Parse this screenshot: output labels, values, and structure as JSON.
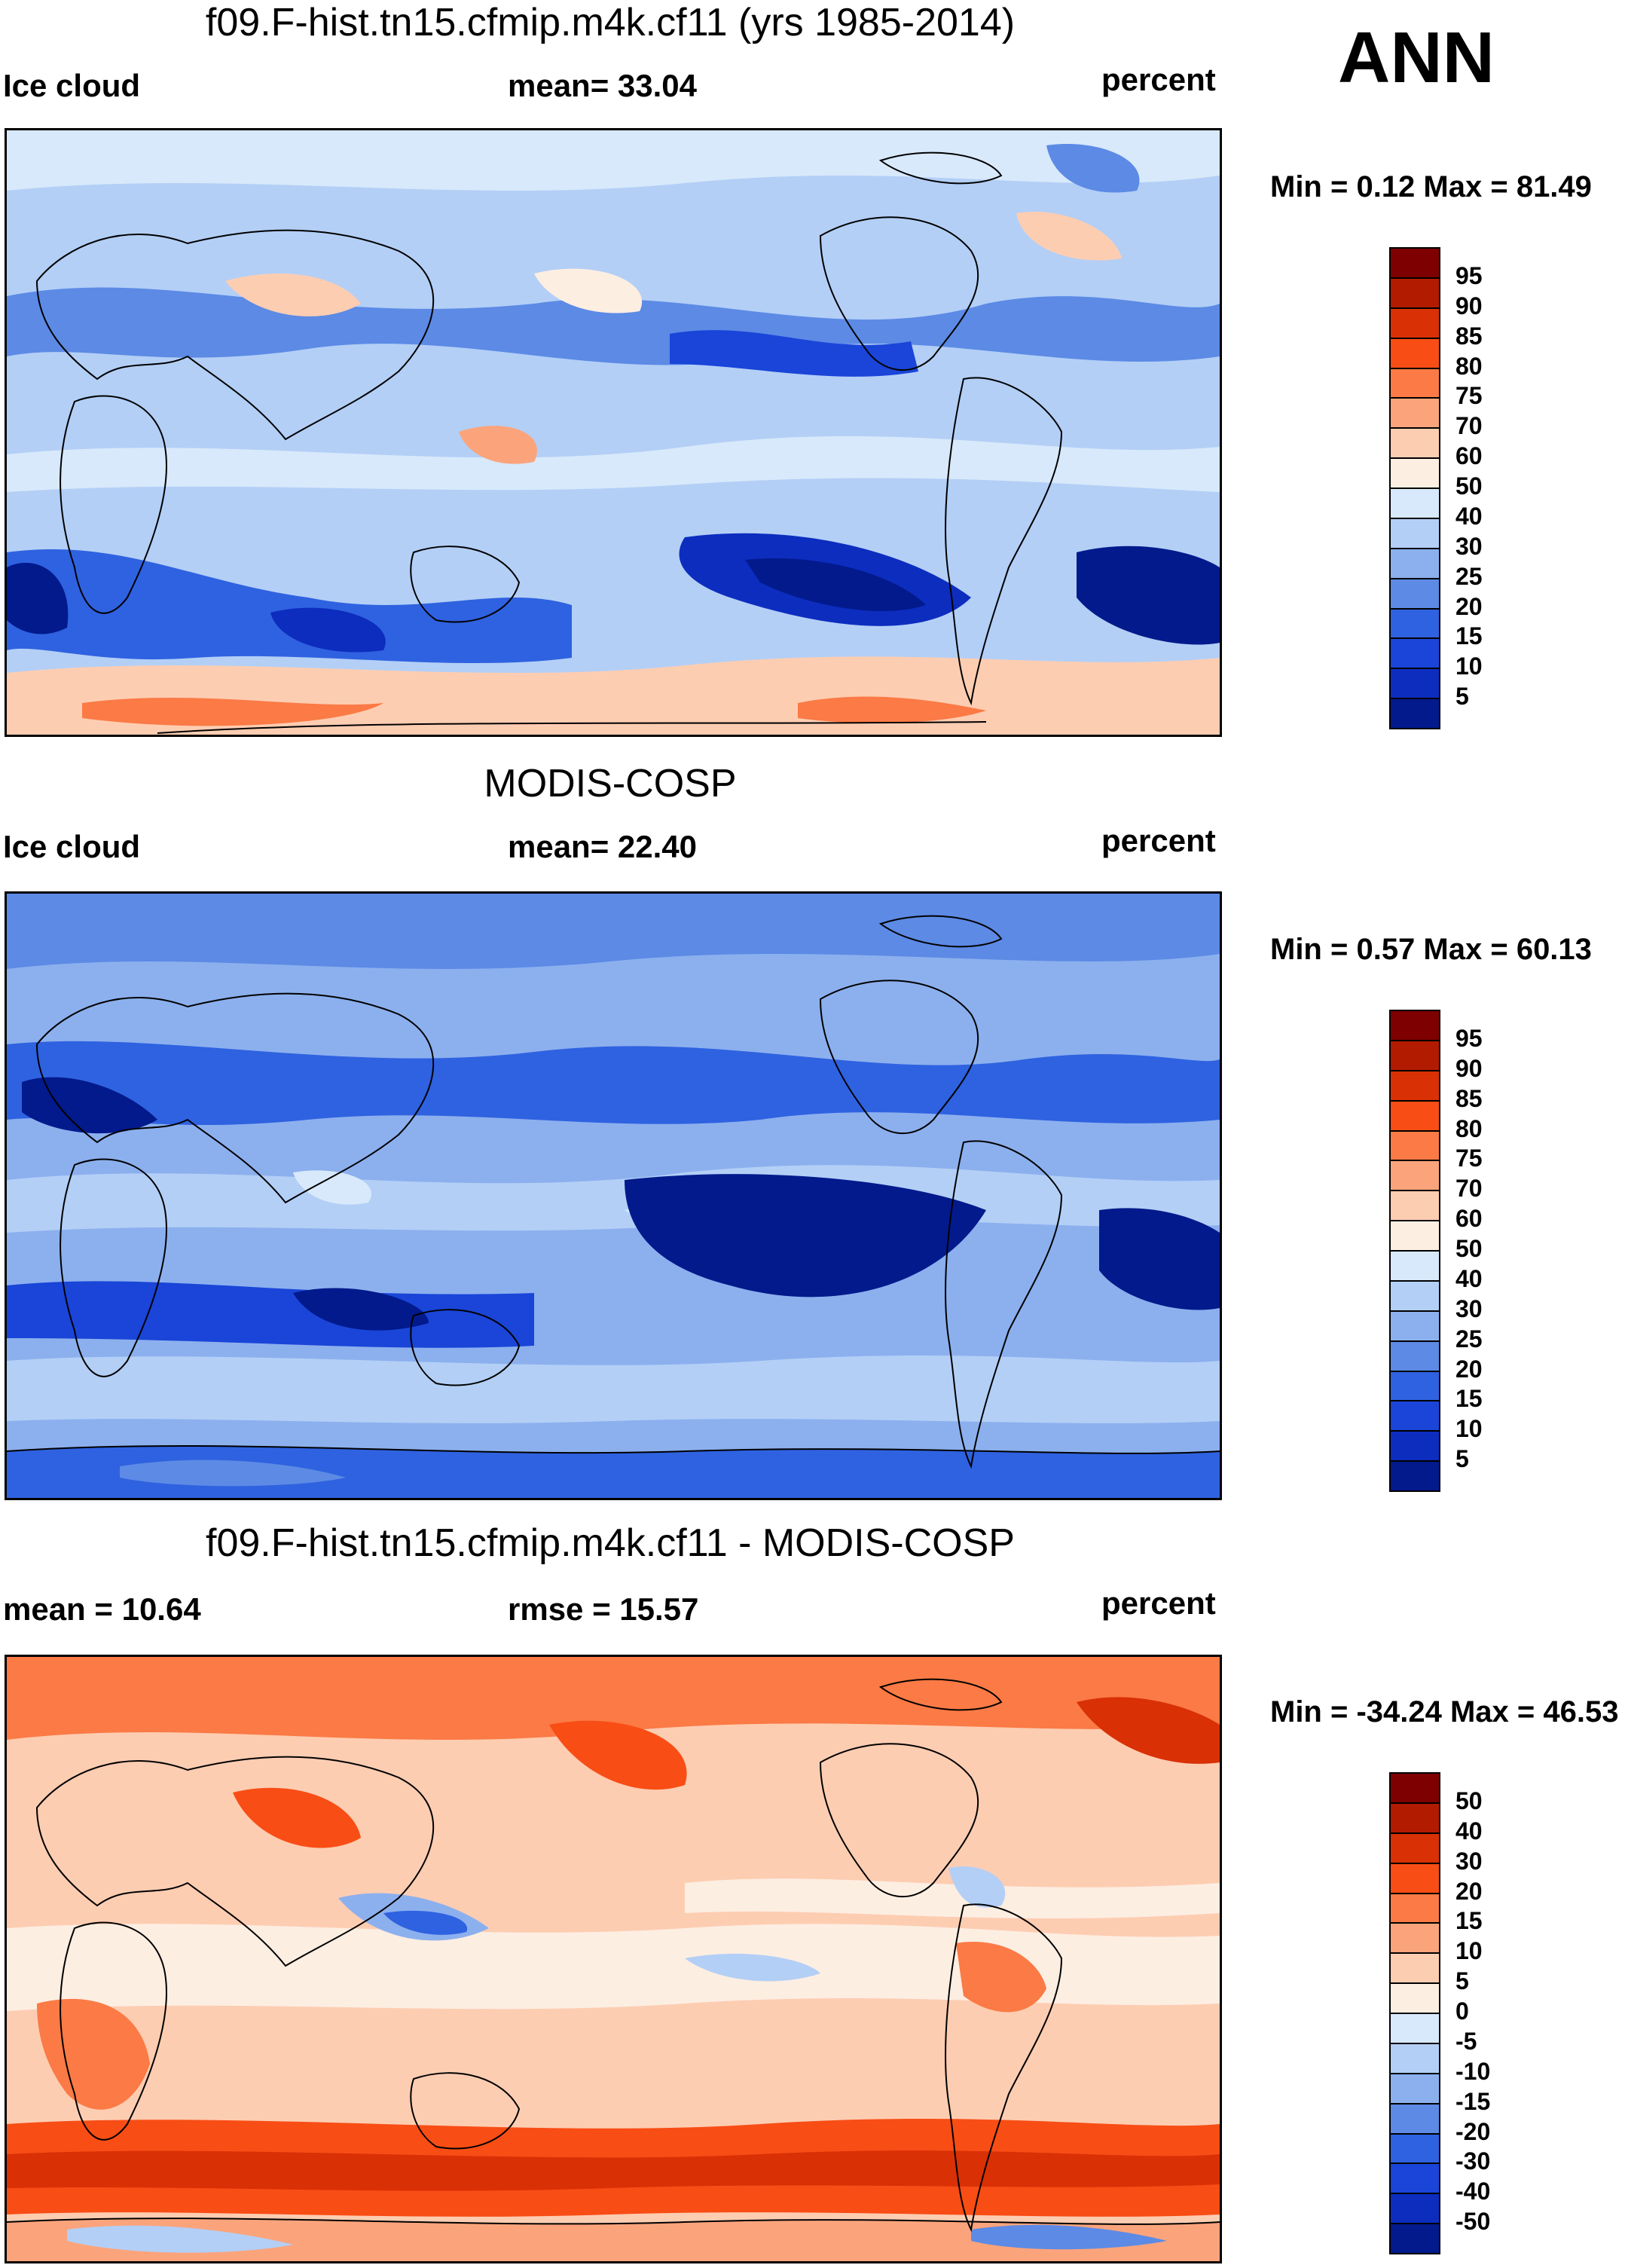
{
  "season": "ANN",
  "chart_data": [
    {
      "type": "heatmap",
      "title": "f09.F-hist.tn15.cfmip.m4k.cf11 (yrs 1985-2014)",
      "left_label": "Ice cloud",
      "center_label": "mean=  33.04",
      "units": "percent",
      "stats": "Min =   0.12 Max =  81.49",
      "mean": 33.04,
      "min": 0.12,
      "max": 81.49,
      "colorbar_ticks": [
        "95",
        "90",
        "85",
        "80",
        "75",
        "70",
        "60",
        "50",
        "40",
        "30",
        "25",
        "20",
        "15",
        "10",
        "5"
      ],
      "colors": [
        "#7f0000",
        "#b31b00",
        "#d93006",
        "#f84d15",
        "#fb7a45",
        "#fba47c",
        "#fdcdb2",
        "#fdeee2",
        "#d8e9fb",
        "#b3cff6",
        "#8cb0ee",
        "#5c8ae5",
        "#2f62e0",
        "#1a45d8",
        "#0d2dbf",
        "#021a8c"
      ]
    },
    {
      "type": "heatmap",
      "title": "MODIS-COSP",
      "left_label": "Ice cloud",
      "center_label": "mean=  22.40",
      "units": "percent",
      "stats": "Min =   0.57 Max =  60.13",
      "mean": 22.4,
      "min": 0.57,
      "max": 60.13,
      "colorbar_ticks": [
        "95",
        "90",
        "85",
        "80",
        "75",
        "70",
        "60",
        "50",
        "40",
        "30",
        "25",
        "20",
        "15",
        "10",
        "5"
      ],
      "colors": [
        "#7f0000",
        "#b31b00",
        "#d93006",
        "#f84d15",
        "#fb7a45",
        "#fba47c",
        "#fdcdb2",
        "#fdeee2",
        "#d8e9fb",
        "#b3cff6",
        "#8cb0ee",
        "#5c8ae5",
        "#2f62e0",
        "#1a45d8",
        "#0d2dbf",
        "#021a8c"
      ]
    },
    {
      "type": "heatmap",
      "title": "f09.F-hist.tn15.cfmip.m4k.cf11 - MODIS-COSP",
      "left_label": "mean =  10.64",
      "center_label": "rmse =  15.57",
      "units": "percent",
      "stats": "Min = -34.24 Max =  46.53",
      "mean": 10.64,
      "rmse": 15.57,
      "min": -34.24,
      "max": 46.53,
      "colorbar_ticks": [
        "50",
        "40",
        "30",
        "20",
        "15",
        "10",
        "5",
        "0",
        "-5",
        "-10",
        "-15",
        "-20",
        "-30",
        "-40",
        "-50"
      ],
      "colors": [
        "#7f0000",
        "#b31b00",
        "#d93006",
        "#f84d15",
        "#fb7a45",
        "#fba47c",
        "#fdcdb2",
        "#fdeee2",
        "#d8e9fb",
        "#b3cff6",
        "#8cb0ee",
        "#5c8ae5",
        "#2f62e0",
        "#1a45d8",
        "#0d2dbf",
        "#021a8c"
      ]
    }
  ]
}
